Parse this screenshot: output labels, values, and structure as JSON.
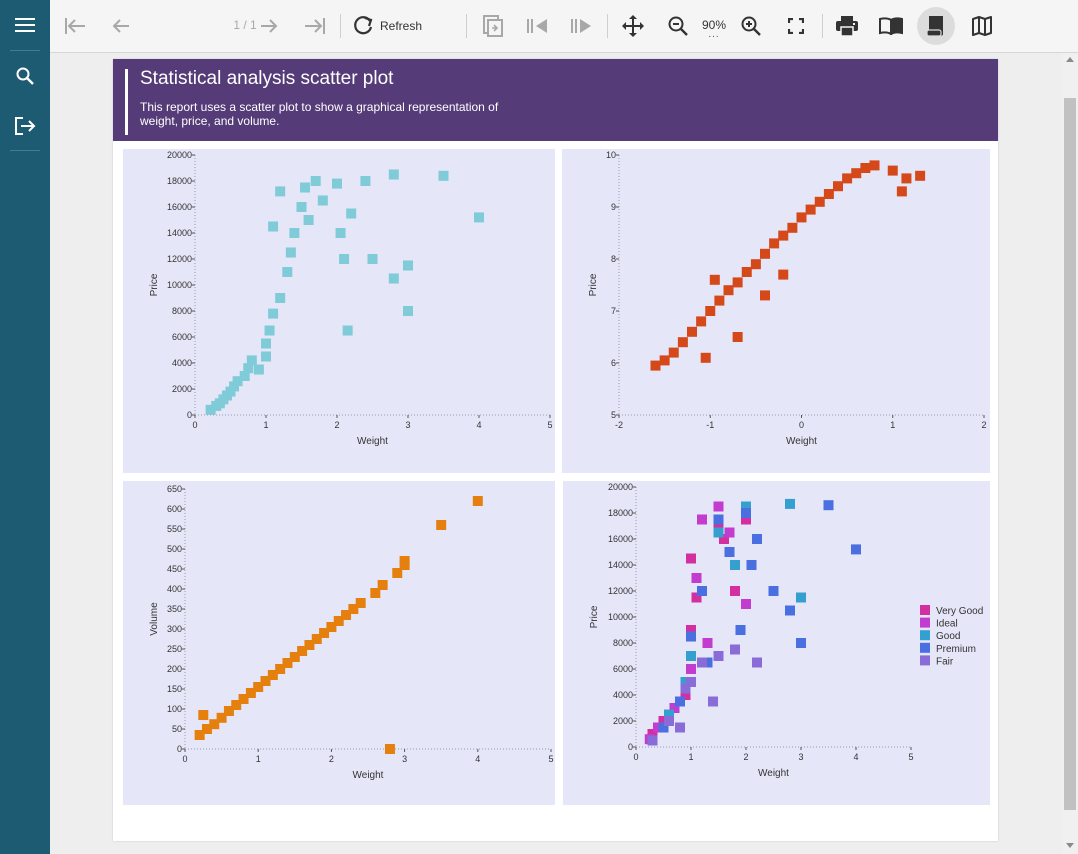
{
  "toolbar": {
    "page_counter": "1 / 1",
    "refresh_label": "Refresh",
    "zoom_value": "90%",
    "zoom_dots": "..."
  },
  "report": {
    "title": "Statistical analysis scatter plot",
    "description": "This report uses a scatter plot to show a graphical representation of weight, price, and volume."
  },
  "colors": {
    "sidebar": "#1d5b73",
    "header": "#553c78",
    "plot_background": "#e6e6f9",
    "series_cyan": "#7fcbd8",
    "series_orange_red": "#d4481a",
    "series_orange": "#e5800f"
  },
  "icons": [
    "menu-icon",
    "search-icon",
    "exit-icon",
    "first-page-icon",
    "previous-page-icon",
    "next-page-icon",
    "last-page-icon",
    "refresh-icon",
    "parameters-icon",
    "previous-icon",
    "next-icon",
    "pan-icon",
    "zoom-out-icon",
    "zoom-in-icon",
    "fullscreen-icon",
    "print-icon",
    "book-icon",
    "scroll-icon",
    "map-icon"
  ],
  "chart_data": [
    {
      "type": "scatter",
      "title": "",
      "xlabel": "Weight",
      "ylabel": "Price",
      "xlim": [
        0,
        5
      ],
      "ylim": [
        0,
        20000
      ],
      "xticks": [
        "0",
        "1",
        "2",
        "3",
        "4",
        "5"
      ],
      "yticks": [
        "0",
        "2000",
        "4000",
        "6000",
        "8000",
        "10000",
        "12000",
        "14000",
        "16000",
        "18000",
        "20000"
      ],
      "series": [
        {
          "color": "#7fcbd8",
          "points": [
            [
              0.22,
              400
            ],
            [
              0.3,
              700
            ],
            [
              0.35,
              900
            ],
            [
              0.4,
              1200
            ],
            [
              0.45,
              1500
            ],
            [
              0.5,
              1800
            ],
            [
              0.55,
              2200
            ],
            [
              0.6,
              2600
            ],
            [
              0.7,
              3000
            ],
            [
              0.75,
              3600
            ],
            [
              0.8,
              4200
            ],
            [
              0.9,
              3500
            ],
            [
              1.0,
              4500
            ],
            [
              1.0,
              5500
            ],
            [
              1.05,
              6500
            ],
            [
              1.1,
              7800
            ],
            [
              1.2,
              9000
            ],
            [
              1.3,
              11000
            ],
            [
              1.35,
              12500
            ],
            [
              1.4,
              14000
            ],
            [
              1.5,
              16000
            ],
            [
              1.55,
              17500
            ],
            [
              1.6,
              15000
            ],
            [
              1.7,
              18000
            ],
            [
              1.8,
              16500
            ],
            [
              2.0,
              17800
            ],
            [
              2.05,
              14000
            ],
            [
              2.1,
              12000
            ],
            [
              2.2,
              15500
            ],
            [
              2.4,
              18000
            ],
            [
              1.2,
              17200
            ],
            [
              1.1,
              14500
            ],
            [
              2.5,
              12000
            ],
            [
              2.8,
              18500
            ],
            [
              2.8,
              10500
            ],
            [
              3.0,
              11500
            ],
            [
              3.0,
              8000
            ],
            [
              3.5,
              18400
            ],
            [
              4.0,
              15200
            ],
            [
              2.15,
              6500
            ]
          ]
        }
      ]
    },
    {
      "type": "scatter",
      "title": "",
      "xlabel": "Weight",
      "ylabel": "Price",
      "xlim": [
        -2,
        2
      ],
      "ylim": [
        5,
        10
      ],
      "xticks": [
        "-2",
        "-1",
        "0",
        "1",
        "2"
      ],
      "yticks": [
        "5",
        "6",
        "7",
        "8",
        "9",
        "10"
      ],
      "series": [
        {
          "color": "#d4481a",
          "points": [
            [
              -1.6,
              5.95
            ],
            [
              -1.5,
              6.05
            ],
            [
              -1.4,
              6.2
            ],
            [
              -1.3,
              6.4
            ],
            [
              -1.2,
              6.6
            ],
            [
              -1.1,
              6.8
            ],
            [
              -1.0,
              7.0
            ],
            [
              -0.9,
              7.2
            ],
            [
              -0.8,
              7.4
            ],
            [
              -0.7,
              7.55
            ],
            [
              -0.6,
              7.75
            ],
            [
              -0.5,
              7.9
            ],
            [
              -0.4,
              8.1
            ],
            [
              -0.3,
              8.3
            ],
            [
              -0.2,
              8.45
            ],
            [
              -0.1,
              8.6
            ],
            [
              0.0,
              8.8
            ],
            [
              0.1,
              8.95
            ],
            [
              0.2,
              9.1
            ],
            [
              0.3,
              9.25
            ],
            [
              0.4,
              9.4
            ],
            [
              0.5,
              9.55
            ],
            [
              0.6,
              9.65
            ],
            [
              0.7,
              9.75
            ],
            [
              0.8,
              9.8
            ],
            [
              1.0,
              9.7
            ],
            [
              1.15,
              9.55
            ],
            [
              1.3,
              9.6
            ],
            [
              1.1,
              9.3
            ],
            [
              -0.7,
              6.5
            ],
            [
              -0.4,
              7.3
            ],
            [
              -1.05,
              6.1
            ],
            [
              -0.95,
              7.6
            ],
            [
              -0.2,
              7.7
            ]
          ]
        }
      ]
    },
    {
      "type": "scatter",
      "title": "",
      "xlabel": "Weight",
      "ylabel": "Volume",
      "xlim": [
        0,
        5
      ],
      "ylim": [
        0,
        650
      ],
      "xticks": [
        "0",
        "1",
        "2",
        "3",
        "4",
        "5"
      ],
      "yticks": [
        "0",
        "50",
        "100",
        "150",
        "200",
        "250",
        "300",
        "350",
        "400",
        "450",
        "500",
        "550",
        "600",
        "650"
      ],
      "series": [
        {
          "color": "#e5800f",
          "points": [
            [
              0.2,
              35
            ],
            [
              0.3,
              50
            ],
            [
              0.4,
              62
            ],
            [
              0.5,
              78
            ],
            [
              0.6,
              95
            ],
            [
              0.7,
              110
            ],
            [
              0.8,
              125
            ],
            [
              0.9,
              140
            ],
            [
              1.0,
              155
            ],
            [
              1.1,
              170
            ],
            [
              1.2,
              185
            ],
            [
              1.3,
              200
            ],
            [
              1.4,
              215
            ],
            [
              1.5,
              230
            ],
            [
              1.6,
              245
            ],
            [
              1.7,
              260
            ],
            [
              1.8,
              275
            ],
            [
              1.9,
              290
            ],
            [
              2.0,
              305
            ],
            [
              2.1,
              320
            ],
            [
              2.2,
              335
            ],
            [
              2.3,
              350
            ],
            [
              2.4,
              365
            ],
            [
              2.6,
              390
            ],
            [
              2.7,
              410
            ],
            [
              2.9,
              440
            ],
            [
              3.0,
              460
            ],
            [
              3.0,
              470
            ],
            [
              3.5,
              560
            ],
            [
              4.0,
              620
            ],
            [
              0.25,
              85
            ],
            [
              2.8,
              0
            ]
          ]
        }
      ]
    },
    {
      "type": "scatter",
      "title": "",
      "xlabel": "Weight",
      "ylabel": "Price",
      "xlim": [
        0,
        5
      ],
      "ylim": [
        0,
        20000
      ],
      "xticks": [
        "0",
        "1",
        "2",
        "3",
        "4",
        "5"
      ],
      "yticks": [
        "0",
        "2000",
        "4000",
        "6000",
        "8000",
        "10000",
        "12000",
        "14000",
        "16000",
        "18000",
        "20000"
      ],
      "legend": "right",
      "series": [
        {
          "name": "Very Good",
          "color": "#d42fa0",
          "points": [
            [
              0.5,
              2000
            ],
            [
              0.9,
              4000
            ],
            [
              1.0,
              9000
            ],
            [
              1.0,
              14500
            ],
            [
              1.1,
              11500
            ],
            [
              1.5,
              17000
            ],
            [
              1.6,
              16000
            ],
            [
              1.8,
              12000
            ],
            [
              2.0,
              17500
            ],
            [
              0.3,
              1000
            ]
          ]
        },
        {
          "name": "Ideal",
          "color": "#c23ccf",
          "points": [
            [
              0.4,
              1500
            ],
            [
              0.7,
              3000
            ],
            [
              1.0,
              6000
            ],
            [
              1.1,
              13000
            ],
            [
              1.2,
              17500
            ],
            [
              1.5,
              18500
            ],
            [
              1.3,
              8000
            ],
            [
              2.0,
              11000
            ],
            [
              1.7,
              16500
            ],
            [
              0.25,
              600
            ]
          ]
        },
        {
          "name": "Good",
          "color": "#35a0cf",
          "points": [
            [
              0.6,
              2500
            ],
            [
              1.0,
              7000
            ],
            [
              1.5,
              16500
            ],
            [
              2.0,
              18500
            ],
            [
              2.8,
              18700
            ],
            [
              3.0,
              11500
            ],
            [
              1.8,
              14000
            ],
            [
              0.9,
              5000
            ]
          ]
        },
        {
          "name": "Premium",
          "color": "#4a6fe0",
          "points": [
            [
              0.5,
              1500
            ],
            [
              0.8,
              3500
            ],
            [
              1.0,
              8500
            ],
            [
              1.2,
              12000
            ],
            [
              1.5,
              17500
            ],
            [
              1.7,
              15000
            ],
            [
              2.0,
              18000
            ],
            [
              2.2,
              16000
            ],
            [
              2.5,
              12000
            ],
            [
              2.8,
              10500
            ],
            [
              3.0,
              8000
            ],
            [
              3.5,
              18600
            ],
            [
              4.0,
              15200
            ],
            [
              1.3,
              6500
            ],
            [
              2.1,
              14000
            ],
            [
              1.9,
              9000
            ]
          ]
        },
        {
          "name": "Fair",
          "color": "#8a6cd8",
          "points": [
            [
              0.3,
              500
            ],
            [
              0.6,
              2000
            ],
            [
              0.9,
              4500
            ],
            [
              1.0,
              5000
            ],
            [
              1.2,
              6500
            ],
            [
              1.5,
              7000
            ],
            [
              2.2,
              6500
            ],
            [
              1.4,
              3500
            ],
            [
              0.8,
              1500
            ],
            [
              1.8,
              7500
            ]
          ]
        }
      ]
    }
  ]
}
